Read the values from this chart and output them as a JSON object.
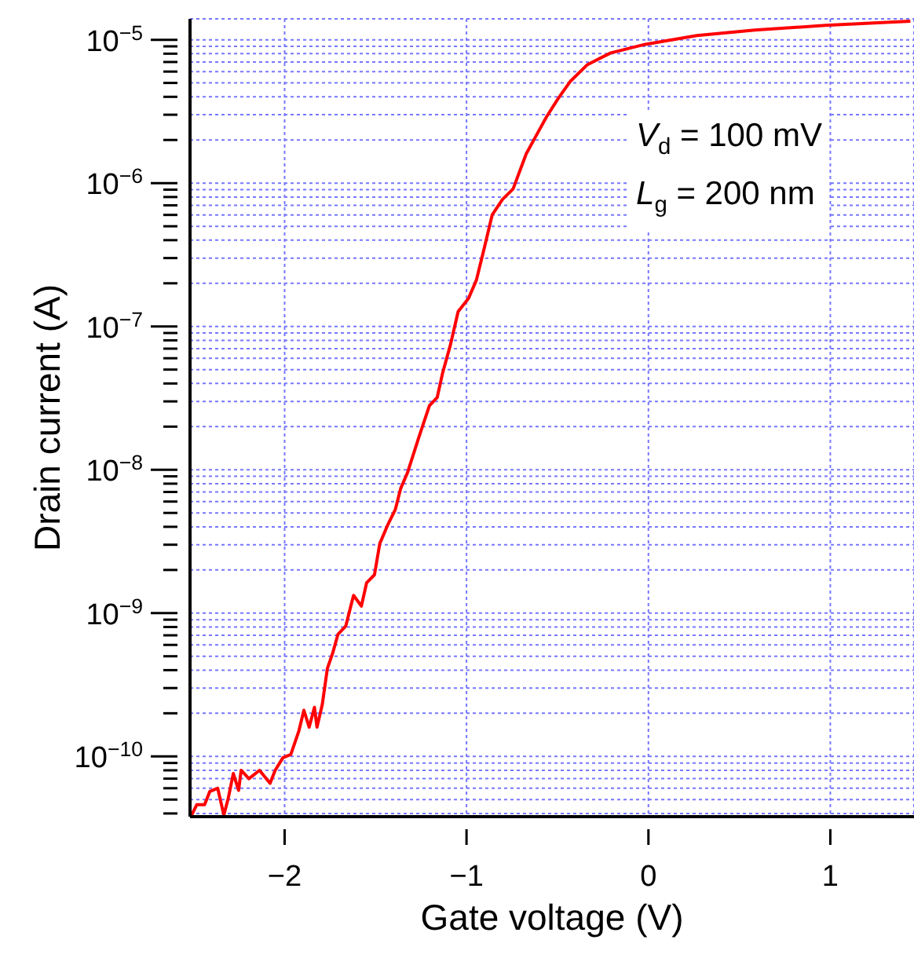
{
  "chart_data": {
    "type": "line",
    "xlabel": "Gate voltage (V)",
    "ylabel": "Drain current (A)",
    "annotations": [
      "V$_{d}$ = 100 mV",
      "L$_{g}$ = 200 nm"
    ],
    "log": "y",
    "grid": true,
    "marker": "none",
    "line_style": "solid",
    "xlim": [
      -2.52,
      1.46
    ],
    "xticks": [
      {
        "value": -2,
        "label": "−2"
      },
      {
        "value": -1,
        "label": "−1"
      },
      0,
      1
    ],
    "ylim": [
      3.8e-11,
      1.4e-05
    ],
    "yticks": [
      {
        "value": 4e-11,
        "label": null
      },
      {
        "value": 5e-11,
        "label": null
      },
      {
        "value": 6e-11,
        "label": null
      },
      {
        "value": 7e-11,
        "label": null
      },
      {
        "value": 8e-11,
        "label": null
      },
      {
        "value": 9e-11,
        "label": null
      },
      {
        "value": 1e-10,
        "label": "10$^{−10}$"
      },
      {
        "value": 2e-10,
        "label": null
      },
      {
        "value": 3e-10,
        "label": null
      },
      {
        "value": 4e-10,
        "label": null
      },
      {
        "value": 5e-10,
        "label": null
      },
      {
        "value": 6e-10,
        "label": null
      },
      {
        "value": 7e-10,
        "label": null
      },
      {
        "value": 8e-10,
        "label": null
      },
      {
        "value": 9e-10,
        "label": null
      },
      {
        "value": 1e-09,
        "label": "10$^{−9}$"
      },
      {
        "value": 2e-09,
        "label": null
      },
      {
        "value": 3e-09,
        "label": null
      },
      {
        "value": 4e-09,
        "label": null
      },
      {
        "value": 5e-09,
        "label": null
      },
      {
        "value": 6e-09,
        "label": null
      },
      {
        "value": 7e-09,
        "label": null
      },
      {
        "value": 8e-09,
        "label": null
      },
      {
        "value": 9e-09,
        "label": null
      },
      {
        "value": 1e-08,
        "label": "10$^{−8}$"
      },
      {
        "value": 2e-08,
        "label": null
      },
      {
        "value": 3e-08,
        "label": null
      },
      {
        "value": 4e-08,
        "label": null
      },
      {
        "value": 5e-08,
        "label": null
      },
      {
        "value": 6e-08,
        "label": null
      },
      {
        "value": 7e-08,
        "label": null
      },
      {
        "value": 8e-08,
        "label": null
      },
      {
        "value": 9e-08,
        "label": null
      },
      {
        "value": 1e-07,
        "label": "10$^{−7}$"
      },
      {
        "value": 2e-07,
        "label": null
      },
      {
        "value": 3e-07,
        "label": null
      },
      {
        "value": 4e-07,
        "label": null
      },
      {
        "value": 5e-07,
        "label": null
      },
      {
        "value": 6e-07,
        "label": null
      },
      {
        "value": 7e-07,
        "label": null
      },
      {
        "value": 8e-07,
        "label": null
      },
      {
        "value": 9e-07,
        "label": null
      },
      {
        "value": 1e-06,
        "label": "10$^{−6}$"
      },
      {
        "value": 2e-06,
        "label": null
      },
      {
        "value": 3e-06,
        "label": null
      },
      {
        "value": 4e-06,
        "label": null
      },
      {
        "value": 5e-06,
        "label": null
      },
      {
        "value": 6e-06,
        "label": null
      },
      {
        "value": 7e-06,
        "label": null
      },
      {
        "value": 8e-06,
        "label": null
      },
      {
        "value": 9e-06,
        "label": null
      },
      {
        "value": 1e-05,
        "label": "10$^{−5}$"
      }
    ],
    "x": [
      -2.511,
      -2.483,
      -2.44,
      -2.411,
      -2.368,
      -2.334,
      -2.31,
      -2.282,
      -2.253,
      -2.239,
      -2.196,
      -2.138,
      -2.08,
      -2.052,
      -2.009,
      -1.966,
      -1.922,
      -1.894,
      -1.865,
      -1.836,
      -1.822,
      -1.793,
      -1.765,
      -1.735,
      -1.707,
      -1.664,
      -1.621,
      -1.578,
      -1.549,
      -1.506,
      -1.477,
      -1.434,
      -1.391,
      -1.362,
      -1.325,
      -1.261,
      -1.204,
      -1.161,
      -1.132,
      -1.089,
      -1.046,
      -0.989,
      -0.946,
      -0.903,
      -0.859,
      -0.802,
      -0.744,
      -0.672,
      -0.621,
      -0.56,
      -0.496,
      -0.431,
      -0.336,
      -0.207,
      -0.017,
      0.267,
      0.586,
      0.974,
      1.44
    ],
    "series": [
      {
        "color": "#ff0000",
        "values": [
          3.9e-11,
          4.6e-11,
          4.6e-11,
          5.7e-11,
          6e-11,
          3.9e-11,
          5.1e-11,
          7.6e-11,
          5.8e-11,
          8e-11,
          7e-11,
          8e-11,
          6.5e-11,
          8e-11,
          9.8e-11,
          1.03e-10,
          1.5e-10,
          2.1e-10,
          1.6e-10,
          2.2e-10,
          1.6e-10,
          2.3e-10,
          4.1e-10,
          5.3e-10,
          7.1e-10,
          8.1e-10,
          1.33e-09,
          1.12e-09,
          1.63e-09,
          1.85e-09,
          3.05e-09,
          4.1e-09,
          5.3e-09,
          7.4e-09,
          9.5e-09,
          1.7e-08,
          2.8e-08,
          3.2e-08,
          4.7e-08,
          7.4e-08,
          1.27e-07,
          1.57e-07,
          2.1e-07,
          3.5e-07,
          6e-07,
          7.7e-07,
          9.1e-07,
          1.6e-06,
          2.1e-06,
          2.9e-06,
          3.9e-06,
          5.1e-06,
          6.7e-06,
          8.1e-06,
          9.3e-06,
          1.07e-05,
          1.17e-05,
          1.26e-05,
          1.35e-05
        ]
      }
    ]
  }
}
